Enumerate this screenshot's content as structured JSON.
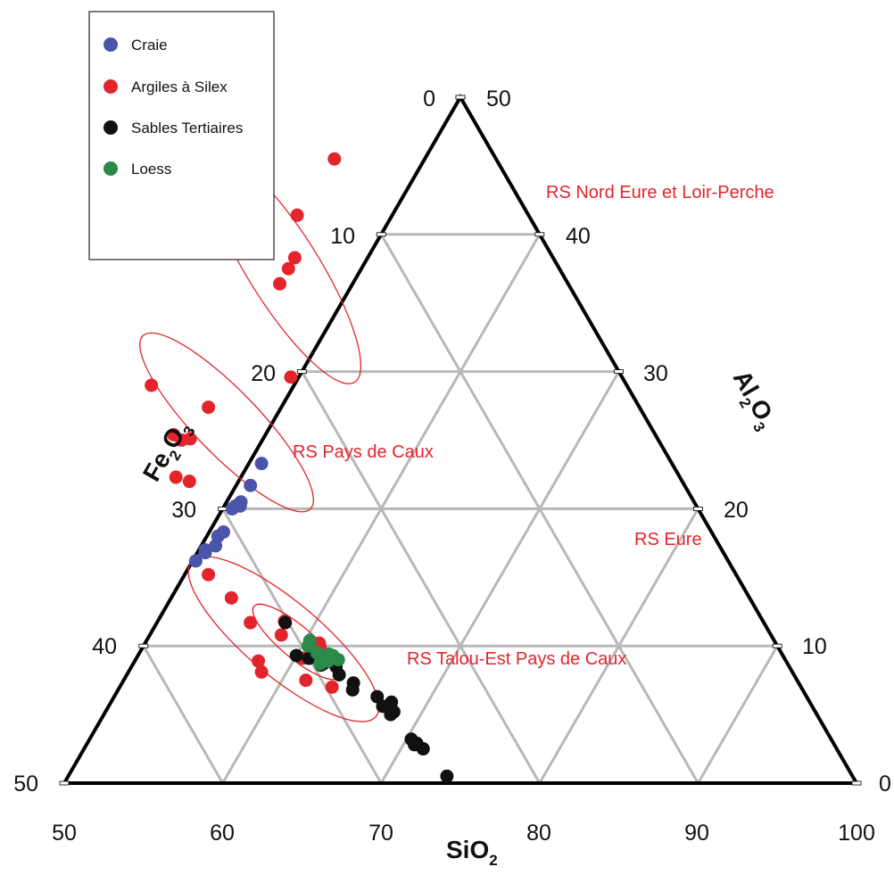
{
  "chart_data": {
    "type": "scatter",
    "subtype": "ternary",
    "axes": {
      "bottom": {
        "label": "SiO",
        "subscript": "2",
        "range": [
          50,
          100
        ],
        "ticks": [
          {
            "value": 50,
            "label": "50"
          },
          {
            "value": 60,
            "label": "60"
          },
          {
            "value": 70,
            "label": "70"
          },
          {
            "value": 80,
            "label": "80"
          },
          {
            "value": 90,
            "label": "90"
          },
          {
            "value": 100,
            "label": "100"
          }
        ]
      },
      "left": {
        "label_main": "Fe",
        "subscript_1": "2",
        "label_mid": "O",
        "subscript_2": "3",
        "range": [
          0,
          50
        ],
        "ticks": [
          {
            "value": 0,
            "label": "0"
          },
          {
            "value": 10,
            "label": "10"
          },
          {
            "value": 20,
            "label": "20"
          },
          {
            "value": 30,
            "label": "30"
          },
          {
            "value": 40,
            "label": "40"
          },
          {
            "value": 50,
            "label": "50"
          }
        ]
      },
      "right": {
        "label_main": "Al",
        "subscript_1": "2",
        "label_mid": "O",
        "subscript_2": "3",
        "range": [
          0,
          50
        ],
        "ticks": [
          {
            "value": 50,
            "label": "50"
          },
          {
            "value": 40,
            "label": "40"
          },
          {
            "value": 30,
            "label": "30"
          },
          {
            "value": 20,
            "label": "20"
          },
          {
            "value": 10,
            "label": "10"
          },
          {
            "value": 0,
            "label": "0"
          }
        ]
      }
    },
    "grid": true,
    "legend": {
      "placement": "top-left",
      "items": [
        {
          "label": "Craie",
          "color": "#4a54a8"
        },
        {
          "label": "Argiles à Silex",
          "color": "#e3242b"
        },
        {
          "label": "Sables Tertiaires",
          "color": "#111111"
        },
        {
          "label": "Loess",
          "color": "#2a8a4a"
        }
      ]
    },
    "series": [
      {
        "name": "Craie",
        "color": "#4a54a8",
        "points": [
          {
            "al": 23.3,
            "fe": 25.9
          },
          {
            "al": 21.7,
            "fe": 27.4
          },
          {
            "al": 20.5,
            "fe": 28.6
          },
          {
            "al": 20.2,
            "fe": 28.8
          },
          {
            "al": 20.0,
            "fe": 29.4
          },
          {
            "al": 20.2,
            "fe": 29.1
          },
          {
            "al": 18.3,
            "fe": 30.8
          },
          {
            "al": 18.0,
            "fe": 31.3
          },
          {
            "al": 17.3,
            "fe": 31.8
          },
          {
            "al": 17.0,
            "fe": 32.6
          },
          {
            "al": 16.8,
            "fe": 32.7
          },
          {
            "al": 16.2,
            "fe": 33.6
          }
        ]
      },
      {
        "name": "Argiles à Silex",
        "color": "#e3242b",
        "points": [
          {
            "al": 45.5,
            "fe": 10.2
          },
          {
            "al": 41.4,
            "fe": 14.6
          },
          {
            "al": 38.3,
            "fe": 16.3
          },
          {
            "al": 37.5,
            "fe": 17.1
          },
          {
            "al": 36.4,
            "fe": 18.2
          },
          {
            "al": 29.6,
            "fe": 20.9
          },
          {
            "al": 29.0,
            "fe": 30.0
          },
          {
            "al": 27.4,
            "fe": 27.2
          },
          {
            "al": 25.4,
            "fe": 30.4
          },
          {
            "al": 25.1,
            "fe": 29.5
          },
          {
            "al": 25.0,
            "fe": 30.1
          },
          {
            "al": 22.3,
            "fe": 31.8
          },
          {
            "al": 22.0,
            "fe": 31.1
          },
          {
            "al": 15.2,
            "fe": 33.3
          },
          {
            "al": 13.5,
            "fe": 32.7
          },
          {
            "al": 11.7,
            "fe": 32.4
          },
          {
            "al": 11.8,
            "fe": 30.2
          },
          {
            "al": 10.8,
            "fe": 30.9
          },
          {
            "al": 8.9,
            "fe": 33.3
          },
          {
            "al": 8.1,
            "fe": 33.5
          },
          {
            "al": 9.4,
            "fe": 29.5
          },
          {
            "al": 9.1,
            "fe": 30.4
          },
          {
            "al": 9.9,
            "fe": 28.9
          },
          {
            "al": 7.5,
            "fe": 31.0
          },
          {
            "al": 10.2,
            "fe": 28.8
          },
          {
            "al": 7.0,
            "fe": 29.6
          }
        ]
      },
      {
        "name": "Sables Tertiaires",
        "color": "#111111",
        "points": [
          {
            "al": 11.7,
            "fe": 30.2
          },
          {
            "al": 9.3,
            "fe": 30.7
          },
          {
            "al": 9.1,
            "fe": 30.0
          },
          {
            "al": 8.7,
            "fe": 29.3
          },
          {
            "al": 8.6,
            "fe": 29.5
          },
          {
            "al": 8.5,
            "fe": 28.6
          },
          {
            "al": 7.9,
            "fe": 28.7
          },
          {
            "al": 7.3,
            "fe": 28.1
          },
          {
            "al": 6.8,
            "fe": 28.4
          },
          {
            "al": 6.3,
            "fe": 27.1
          },
          {
            "al": 5.6,
            "fe": 27.1
          },
          {
            "al": 5.9,
            "fe": 26.4
          },
          {
            "al": 5.0,
            "fe": 26.9
          },
          {
            "al": 5.2,
            "fe": 26.6
          },
          {
            "al": 3.2,
            "fe": 26.5
          },
          {
            "al": 2.8,
            "fe": 26.5
          },
          {
            "al": 2.9,
            "fe": 26.3
          },
          {
            "al": 2.5,
            "fe": 26.1
          },
          {
            "al": 0.5,
            "fe": 25.6
          }
        ]
      },
      {
        "name": "Loess",
        "color": "#2a8a4a",
        "points": [
          {
            "al": 10.0,
            "fe": 29.6
          },
          {
            "al": 10.4,
            "fe": 29.3
          },
          {
            "al": 9.5,
            "fe": 29.3
          },
          {
            "al": 9.2,
            "fe": 29.1
          },
          {
            "al": 8.9,
            "fe": 28.9
          },
          {
            "al": 9.4,
            "fe": 28.6
          },
          {
            "al": 9.3,
            "fe": 28.4
          },
          {
            "al": 9.0,
            "fe": 28.2
          },
          {
            "al": 8.7,
            "fe": 29.5
          }
        ]
      }
    ],
    "regions": [
      {
        "label": "RS Nord Eure et Loir-Perche"
      },
      {
        "label": "RS Pays de Caux"
      },
      {
        "label": "RS Eure"
      },
      {
        "label": "RS Talou-Est Pays de Caux"
      }
    ]
  }
}
